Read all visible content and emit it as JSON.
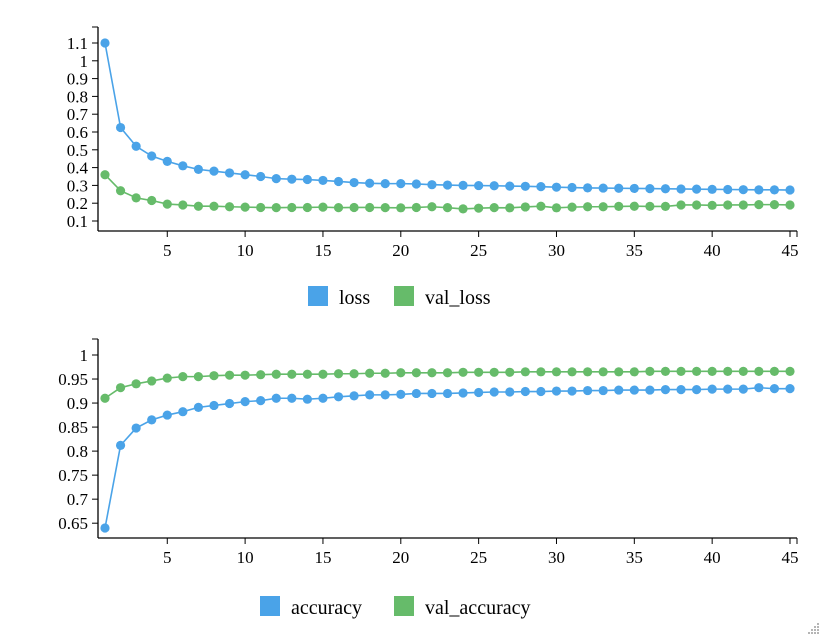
{
  "chart_data": [
    {
      "type": "line",
      "title": "",
      "xlabel": "",
      "ylabel": "",
      "xlim": [
        1,
        45
      ],
      "ylim": [
        0.1,
        1.1
      ],
      "xticks": [
        5,
        10,
        15,
        20,
        25,
        30,
        35,
        40,
        45
      ],
      "yticks": [
        0.1,
        0.2,
        0.3,
        0.4,
        0.5,
        0.6,
        0.7,
        0.8,
        0.9,
        1,
        1.1
      ],
      "x": [
        1,
        2,
        3,
        4,
        5,
        6,
        7,
        8,
        9,
        10,
        11,
        12,
        13,
        14,
        15,
        16,
        17,
        18,
        19,
        20,
        21,
        22,
        23,
        24,
        25,
        26,
        27,
        28,
        29,
        30,
        31,
        32,
        33,
        34,
        35,
        36,
        37,
        38,
        39,
        40,
        41,
        42,
        43,
        44,
        45
      ],
      "legend_position": "bottom",
      "series": [
        {
          "name": "loss",
          "color": "#4aa3e8",
          "values": [
            1.1,
            0.625,
            0.52,
            0.465,
            0.435,
            0.41,
            0.39,
            0.38,
            0.37,
            0.36,
            0.35,
            0.338,
            0.335,
            0.333,
            0.328,
            0.322,
            0.316,
            0.312,
            0.31,
            0.31,
            0.308,
            0.304,
            0.302,
            0.3,
            0.299,
            0.298,
            0.296,
            0.295,
            0.293,
            0.29,
            0.288,
            0.286,
            0.285,
            0.284,
            0.283,
            0.282,
            0.281,
            0.28,
            0.279,
            0.278,
            0.277,
            0.276,
            0.275,
            0.275,
            0.274
          ]
        },
        {
          "name": "val_loss",
          "color": "#66bb6a",
          "values": [
            0.36,
            0.27,
            0.23,
            0.215,
            0.195,
            0.19,
            0.183,
            0.183,
            0.18,
            0.178,
            0.176,
            0.175,
            0.176,
            0.176,
            0.178,
            0.175,
            0.176,
            0.176,
            0.175,
            0.174,
            0.176,
            0.18,
            0.175,
            0.168,
            0.172,
            0.175,
            0.174,
            0.179,
            0.183,
            0.174,
            0.178,
            0.18,
            0.18,
            0.182,
            0.183,
            0.182,
            0.182,
            0.19,
            0.19,
            0.188,
            0.19,
            0.19,
            0.192,
            0.192,
            0.19
          ]
        }
      ]
    },
    {
      "type": "line",
      "title": "",
      "xlabel": "",
      "ylabel": "",
      "xlim": [
        1,
        45
      ],
      "ylim": [
        0.64,
        1
      ],
      "xticks": [
        5,
        10,
        15,
        20,
        25,
        30,
        35,
        40,
        45
      ],
      "yticks": [
        0.65,
        0.7,
        0.75,
        0.8,
        0.85,
        0.9,
        0.95,
        1
      ],
      "x": [
        1,
        2,
        3,
        4,
        5,
        6,
        7,
        8,
        9,
        10,
        11,
        12,
        13,
        14,
        15,
        16,
        17,
        18,
        19,
        20,
        21,
        22,
        23,
        24,
        25,
        26,
        27,
        28,
        29,
        30,
        31,
        32,
        33,
        34,
        35,
        36,
        37,
        38,
        39,
        40,
        41,
        42,
        43,
        44,
        45
      ],
      "legend_position": "bottom",
      "series": [
        {
          "name": "accuracy",
          "color": "#4aa3e8",
          "values": [
            0.64,
            0.812,
            0.848,
            0.865,
            0.875,
            0.882,
            0.891,
            0.895,
            0.899,
            0.903,
            0.905,
            0.91,
            0.91,
            0.908,
            0.91,
            0.913,
            0.915,
            0.917,
            0.917,
            0.918,
            0.92,
            0.92,
            0.92,
            0.921,
            0.922,
            0.923,
            0.923,
            0.924,
            0.924,
            0.925,
            0.925,
            0.926,
            0.926,
            0.927,
            0.927,
            0.927,
            0.928,
            0.928,
            0.928,
            0.929,
            0.929,
            0.929,
            0.932,
            0.93,
            0.93
          ]
        },
        {
          "name": "val_accuracy",
          "color": "#66bb6a",
          "values": [
            0.91,
            0.932,
            0.94,
            0.946,
            0.952,
            0.955,
            0.955,
            0.957,
            0.958,
            0.958,
            0.959,
            0.96,
            0.96,
            0.96,
            0.96,
            0.961,
            0.961,
            0.962,
            0.962,
            0.963,
            0.963,
            0.963,
            0.963,
            0.964,
            0.964,
            0.964,
            0.964,
            0.965,
            0.965,
            0.965,
            0.965,
            0.965,
            0.965,
            0.965,
            0.965,
            0.966,
            0.966,
            0.966,
            0.966,
            0.966,
            0.966,
            0.966,
            0.966,
            0.966,
            0.966
          ]
        }
      ]
    }
  ]
}
